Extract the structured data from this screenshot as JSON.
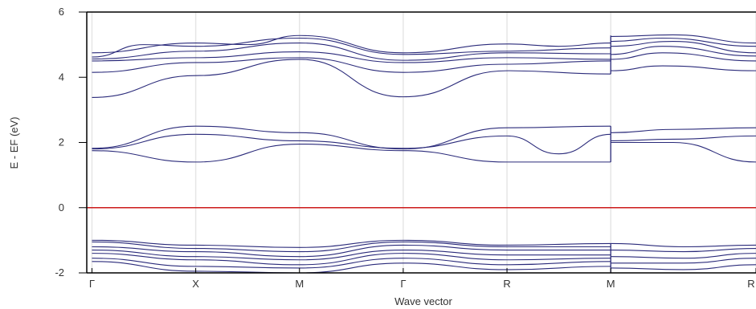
{
  "chart_data": {
    "type": "line",
    "title": "",
    "xlabel": "Wave vector",
    "ylabel": "E - EF (eV)",
    "ylim": [
      -2,
      6
    ],
    "yticks": [
      -2,
      0,
      2,
      4,
      6
    ],
    "xticks": [
      {
        "label": "Γ",
        "x": 0
      },
      {
        "label": "X",
        "x": 1
      },
      {
        "label": "M",
        "x": 2
      },
      {
        "label": "Γ",
        "x": 3
      },
      {
        "label": "R",
        "x": 4
      },
      {
        "label": "M",
        "x": 5
      },
      {
        "label": "R",
        "x": 6.4
      }
    ],
    "xlim": [
      -0.05,
      6.4
    ],
    "grid": "vertical lines at high-symmetry points",
    "fermi_level": 0,
    "colors": {
      "bands": "#2a2a7a",
      "fermi": "#cc1a1a",
      "grid": "#e6e6e6",
      "axes": "#000000"
    },
    "series": [
      {
        "x": [
          0,
          1,
          2,
          3,
          4,
          5
        ],
        "y": [
          3.38,
          4.05,
          4.55,
          3.4,
          4.2,
          4.1
        ]
      },
      {
        "x": [
          0,
          1,
          2,
          3,
          4,
          5
        ],
        "y": [
          4.15,
          4.45,
          4.6,
          4.15,
          4.4,
          4.5
        ]
      },
      {
        "x": [
          0,
          1,
          2,
          3,
          4,
          5
        ],
        "y": [
          4.5,
          4.6,
          4.78,
          4.45,
          4.6,
          4.55
        ]
      },
      {
        "x": [
          0,
          1,
          2,
          3,
          4,
          5
        ],
        "y": [
          4.56,
          4.8,
          5.05,
          4.52,
          4.75,
          4.72
        ]
      },
      {
        "x": [
          0,
          0.5,
          1,
          2,
          3,
          4,
          5
        ],
        "y": [
          4.62,
          5.0,
          4.95,
          5.2,
          4.7,
          4.8,
          4.9
        ]
      },
      {
        "x": [
          0,
          1,
          1.5,
          2,
          3,
          4,
          4.5,
          5
        ],
        "y": [
          4.75,
          5.05,
          5.0,
          5.28,
          4.75,
          5.02,
          4.95,
          5.05
        ]
      },
      {
        "x": [
          5,
          5.5,
          6.4
        ],
        "y": [
          4.2,
          4.35,
          4.2
        ]
      },
      {
        "x": [
          5,
          5.5,
          6.4
        ],
        "y": [
          4.55,
          4.75,
          4.5
        ]
      },
      {
        "x": [
          5,
          5.5,
          6.4
        ],
        "y": [
          4.7,
          4.95,
          4.65
        ]
      },
      {
        "x": [
          5,
          5.6,
          6.4
        ],
        "y": [
          4.95,
          5.1,
          4.75
        ]
      },
      {
        "x": [
          5,
          5.5,
          6.4
        ],
        "y": [
          5.1,
          5.2,
          4.95
        ]
      },
      {
        "x": [
          5,
          5.6,
          6.4
        ],
        "y": [
          5.25,
          5.3,
          5.05
        ]
      },
      {
        "x": [
          0,
          1,
          2,
          3,
          4,
          5
        ],
        "y": [
          1.75,
          1.4,
          1.95,
          1.75,
          1.4,
          1.4
        ]
      },
      {
        "x": [
          0,
          1,
          2,
          3,
          4,
          4.5,
          5
        ],
        "y": [
          1.8,
          2.25,
          2.05,
          1.82,
          2.2,
          1.65,
          2.25
        ]
      },
      {
        "x": [
          0,
          1,
          2,
          3,
          4,
          5
        ],
        "y": [
          1.82,
          2.5,
          2.3,
          1.8,
          2.45,
          2.5
        ]
      },
      {
        "x": [
          5,
          5.6,
          6.4
        ],
        "y": [
          2.0,
          2.0,
          1.4
        ]
      },
      {
        "x": [
          5,
          5.6,
          6.4
        ],
        "y": [
          2.05,
          2.1,
          2.2
        ]
      },
      {
        "x": [
          5,
          5.6,
          6.4
        ],
        "y": [
          2.3,
          2.4,
          2.45
        ]
      },
      {
        "x": [
          0,
          1,
          2,
          3,
          4,
          5
        ],
        "y": [
          -1.0,
          -1.15,
          -1.22,
          -1.0,
          -1.15,
          -1.1
        ]
      },
      {
        "x": [
          0,
          1,
          2,
          3,
          4,
          5
        ],
        "y": [
          -1.05,
          -1.25,
          -1.35,
          -1.05,
          -1.2,
          -1.2
        ]
      },
      {
        "x": [
          0,
          1,
          2,
          3,
          4,
          5
        ],
        "y": [
          -1.2,
          -1.35,
          -1.5,
          -1.15,
          -1.3,
          -1.3
        ]
      },
      {
        "x": [
          0,
          1,
          2,
          3,
          4,
          5
        ],
        "y": [
          -1.3,
          -1.5,
          -1.6,
          -1.3,
          -1.45,
          -1.45
        ]
      },
      {
        "x": [
          0,
          1,
          2,
          3,
          4,
          5
        ],
        "y": [
          -1.4,
          -1.6,
          -1.75,
          -1.4,
          -1.6,
          -1.55
        ]
      },
      {
        "x": [
          0,
          1,
          2,
          3,
          4,
          5
        ],
        "y": [
          -1.55,
          -1.8,
          -1.85,
          -1.55,
          -1.75,
          -1.65
        ]
      },
      {
        "x": [
          0,
          1,
          2,
          3,
          4,
          5
        ],
        "y": [
          -1.65,
          -1.95,
          -2.0,
          -1.7,
          -1.9,
          -1.8
        ]
      },
      {
        "x": [
          5,
          5.7,
          6.4
        ],
        "y": [
          -1.1,
          -1.2,
          -1.15
        ]
      },
      {
        "x": [
          5,
          5.7,
          6.4
        ],
        "y": [
          -1.3,
          -1.35,
          -1.25
        ]
      },
      {
        "x": [
          5,
          5.7,
          6.4
        ],
        "y": [
          -1.5,
          -1.55,
          -1.4
        ]
      },
      {
        "x": [
          5,
          5.7,
          6.4
        ],
        "y": [
          -1.7,
          -1.7,
          -1.55
        ]
      },
      {
        "x": [
          5,
          5.7,
          6.4
        ],
        "y": [
          -1.85,
          -1.9,
          -1.75
        ]
      }
    ]
  }
}
